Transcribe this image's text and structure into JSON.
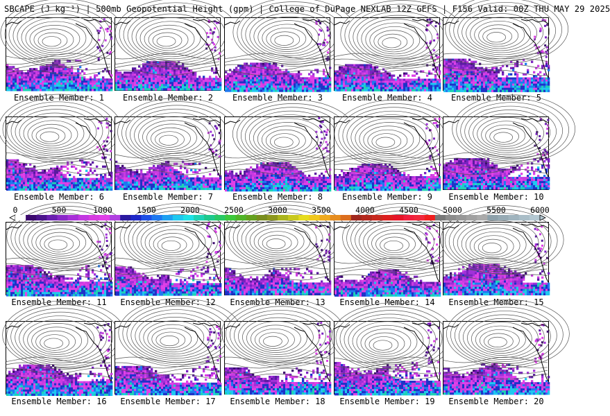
{
  "header": {
    "title": "SBCAPE (J kg⁻¹) | 500mb Geopotential Height (gpm) | College of DuPage NEXLAB 12Z GEFS | F156 Valid: 00Z THU MAY 29 2025"
  },
  "members": [
    {
      "label": "Ensemble Member: 1"
    },
    {
      "label": "Ensemble Member: 2"
    },
    {
      "label": "Ensemble Member: 3"
    },
    {
      "label": "Ensemble Member: 4"
    },
    {
      "label": "Ensemble Member: 5"
    },
    {
      "label": "Ensemble Member: 6"
    },
    {
      "label": "Ensemble Member: 7"
    },
    {
      "label": "Ensemble Member: 8"
    },
    {
      "label": "Ensemble Member: 9"
    },
    {
      "label": "Ensemble Member: 10"
    },
    {
      "label": "Ensemble Member: 11"
    },
    {
      "label": "Ensemble Member: 12"
    },
    {
      "label": "Ensemble Member: 13"
    },
    {
      "label": "Ensemble Member: 14"
    },
    {
      "label": "Ensemble Member: 15"
    },
    {
      "label": "Ensemble Member: 16"
    },
    {
      "label": "Ensemble Member: 17"
    },
    {
      "label": "Ensemble Member: 18"
    },
    {
      "label": "Ensemble Member: 19"
    },
    {
      "label": "Ensemble Member: 20"
    }
  ],
  "colorbar": {
    "ticks": [
      "0",
      "500",
      "1000",
      "1500",
      "2000",
      "2500",
      "3000",
      "3500",
      "4000",
      "4500",
      "5000",
      "5500",
      "6000"
    ],
    "range": [
      0,
      6000
    ],
    "colors": [
      "#ffffff",
      "#3c0a6e",
      "#4b148c",
      "#6a1fb0",
      "#8a28c8",
      "#a830d8",
      "#c238e0",
      "#d63ce0",
      "#e040e8",
      "#b040e0",
      "#2a1aa0",
      "#1e28c8",
      "#1e50e6",
      "#1e78f0",
      "#1ea0f0",
      "#1ec8f0",
      "#1ee0e6",
      "#1ed2b4",
      "#1ec88c",
      "#28c864",
      "#3cc83c",
      "#50b428",
      "#64a01e",
      "#788c1e",
      "#8c961e",
      "#aab41e",
      "#c8c81e",
      "#e6dc1e",
      "#f0c81e",
      "#f0aa1e",
      "#e68c1e",
      "#dc6e1e",
      "#a0281e",
      "#b4281e",
      "#c8281e",
      "#dc1e1e",
      "#e61428",
      "#f01e3c",
      "#f0283c",
      "#f01e1e",
      "#787878",
      "#8c8c8c",
      "#969696",
      "#a0a0a0",
      "#aaaaaa",
      "#8ca0aa",
      "#96aab4",
      "#a0b4be",
      "#aabec8",
      "#b4c8d2"
    ],
    "contour_color": "#555555",
    "land_outline_color": "#000000"
  }
}
